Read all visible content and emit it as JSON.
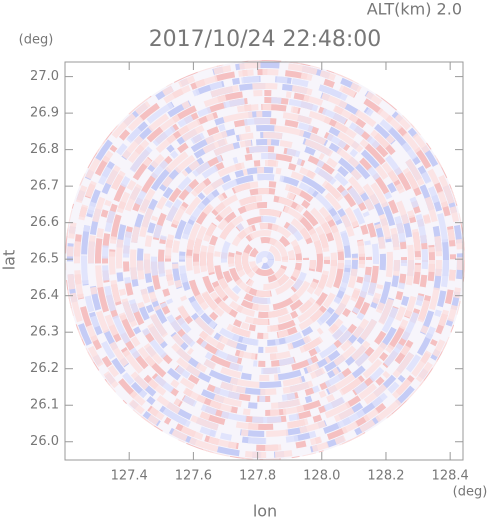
{
  "chart_data": {
    "type": "radar-ppi",
    "altitude_label": "ALT(km) 2.0",
    "title": "2017/10/24 22:48:00",
    "x_unit": "(deg)",
    "y_unit": "(deg)",
    "xlabel": "lon",
    "ylabel": "lat",
    "xlim": [
      127.2,
      128.44
    ],
    "ylim": [
      25.95,
      27.04
    ],
    "xticks": [
      127.4,
      127.6,
      127.8,
      {
        "value": 128.0,
        "label": "128.0"
      },
      128.2,
      128.4
    ],
    "yticks": [
      {
        "value": 26.0,
        "label": "26.0"
      },
      26.1,
      26.2,
      26.3,
      26.4,
      26.5,
      26.6,
      26.7,
      26.8,
      26.9,
      {
        "value": 27.0,
        "label": "27.0"
      }
    ]
  }
}
